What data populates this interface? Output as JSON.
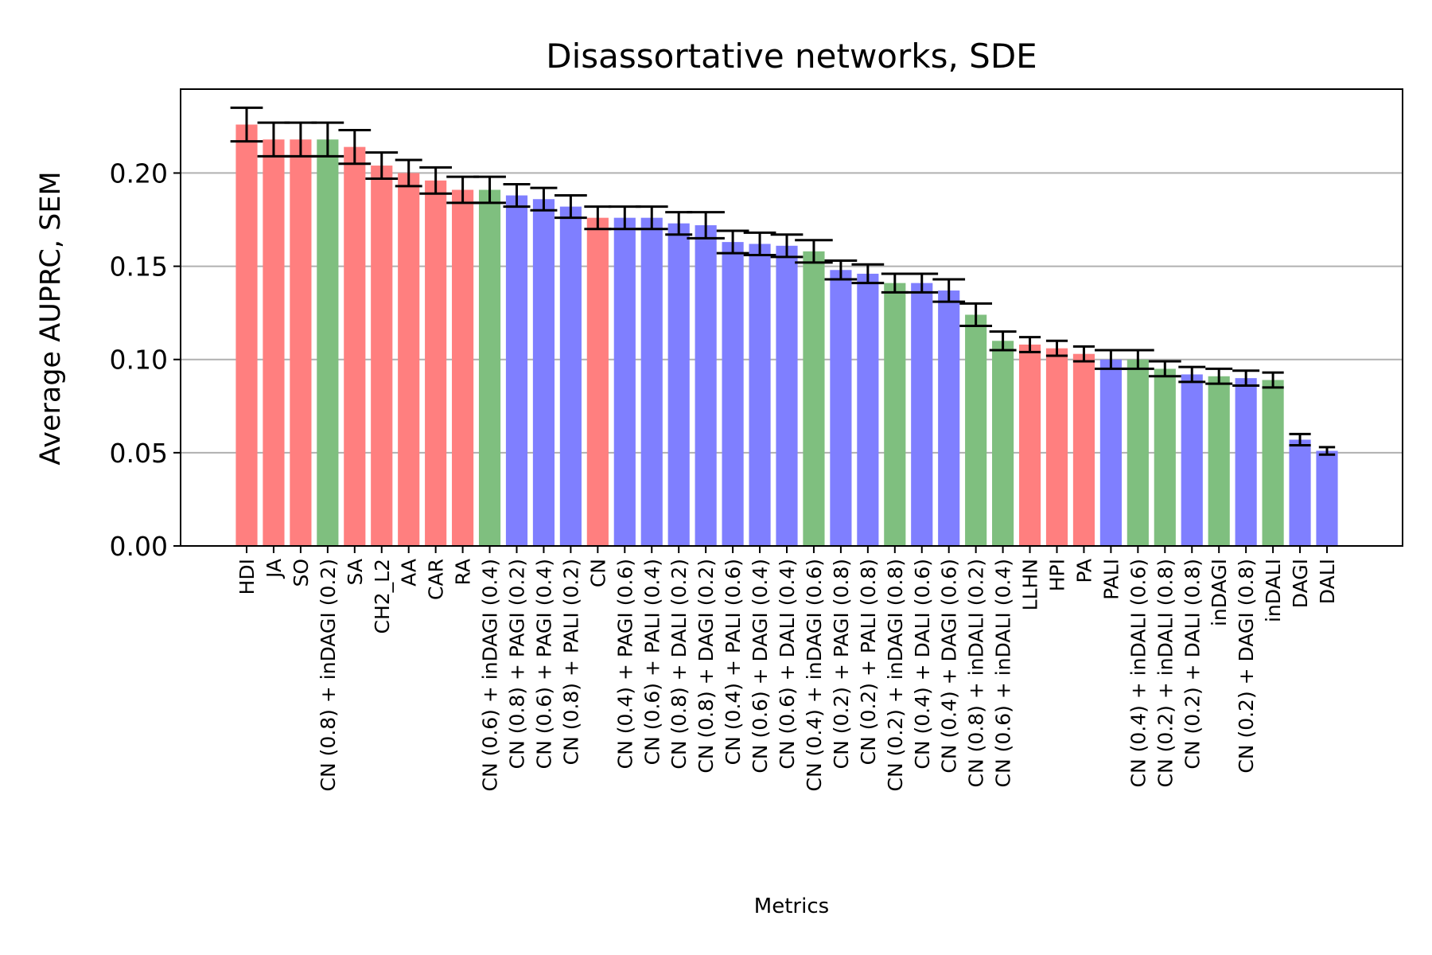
{
  "chart_data": {
    "type": "bar",
    "title": "Disassortative networks, SDE",
    "xlabel": "Metrics",
    "ylabel": "Average AUPRC, SEM",
    "ylim": [
      0,
      0.245
    ],
    "yticks": [
      "0.00",
      "0.05",
      "0.10",
      "0.15",
      "0.20"
    ],
    "grid": "y",
    "categories": [
      "HDI",
      "JA",
      "SO",
      "CN (0.8) + inDAGI (0.2)",
      "SA",
      "CH2_L2",
      "AA",
      "CAR",
      "RA",
      "CN (0.6) + inDAGI (0.4)",
      "CN (0.8) + PAGI (0.2)",
      "CN (0.6) + PAGI (0.4)",
      "CN (0.8) + PALI (0.2)",
      "CN",
      "CN (0.4) + PAGI (0.6)",
      "CN (0.6) + PALI (0.4)",
      "CN (0.8) + DALI (0.2)",
      "CN (0.8) + DAGI (0.2)",
      "CN (0.4) + PALI (0.6)",
      "CN (0.6) + DAGI (0.4)",
      "CN (0.6) + DALI (0.4)",
      "CN (0.4) + inDAGI (0.6)",
      "CN (0.2) + PAGI (0.8)",
      "CN (0.2) + PALI (0.8)",
      "CN (0.2) + inDAGI (0.8)",
      "CN (0.4) + DALI (0.6)",
      "CN (0.4) + DAGI (0.6)",
      "CN (0.8) + inDALI (0.2)",
      "CN (0.6) + inDALI (0.4)",
      "LLHN",
      "HPI",
      "PA",
      "PALI",
      "CN (0.4) + inDALI (0.6)",
      "CN (0.2) + inDALI (0.8)",
      "CN (0.2) + DALI (0.8)",
      "inDAGI",
      "CN (0.2) + DAGI (0.8)",
      "inDALI",
      "DAGI",
      "DALI"
    ],
    "values": [
      0.226,
      0.218,
      0.218,
      0.218,
      0.214,
      0.204,
      0.2,
      0.196,
      0.191,
      0.191,
      0.188,
      0.186,
      0.182,
      0.176,
      0.176,
      0.176,
      0.173,
      0.172,
      0.163,
      0.162,
      0.161,
      0.158,
      0.148,
      0.146,
      0.141,
      0.141,
      0.137,
      0.124,
      0.11,
      0.108,
      0.106,
      0.103,
      0.1,
      0.1,
      0.095,
      0.092,
      0.091,
      0.09,
      0.089,
      0.057,
      0.051
    ],
    "errors": [
      0.009,
      0.009,
      0.009,
      0.009,
      0.009,
      0.007,
      0.007,
      0.007,
      0.007,
      0.007,
      0.006,
      0.006,
      0.006,
      0.006,
      0.006,
      0.006,
      0.006,
      0.007,
      0.006,
      0.006,
      0.006,
      0.006,
      0.005,
      0.005,
      0.005,
      0.005,
      0.006,
      0.006,
      0.005,
      0.004,
      0.004,
      0.004,
      0.005,
      0.005,
      0.004,
      0.004,
      0.004,
      0.004,
      0.004,
      0.003,
      0.002
    ],
    "error_halfwidths": [
      0.6,
      0.6,
      0.6,
      0.6,
      0.6,
      0.6,
      0.5,
      0.6,
      0.6,
      0.6,
      0.5,
      0.5,
      0.6,
      0.5,
      0.6,
      0.6,
      0.5,
      0.7,
      0.6,
      0.6,
      0.6,
      0.7,
      0.6,
      0.6,
      0.5,
      0.6,
      0.6,
      0.6,
      0.5,
      0.4,
      0.4,
      0.4,
      0.6,
      0.6,
      0.6,
      0.5,
      0.5,
      0.5,
      0.4,
      0.4,
      0.3
    ],
    "bar_groups": [
      "red",
      "red",
      "red",
      "green",
      "red",
      "red",
      "red",
      "red",
      "red",
      "green",
      "blue",
      "blue",
      "blue",
      "red",
      "blue",
      "blue",
      "blue",
      "blue",
      "blue",
      "blue",
      "blue",
      "green",
      "blue",
      "blue",
      "green",
      "blue",
      "blue",
      "green",
      "green",
      "red",
      "red",
      "red",
      "blue",
      "green",
      "green",
      "blue",
      "green",
      "blue",
      "green",
      "blue",
      "blue"
    ],
    "colors": {
      "red": "#ff7f7f",
      "green": "#7fbf7f",
      "blue": "#7f7fff",
      "error": "#000000",
      "grid": "#b0b0b0"
    }
  }
}
